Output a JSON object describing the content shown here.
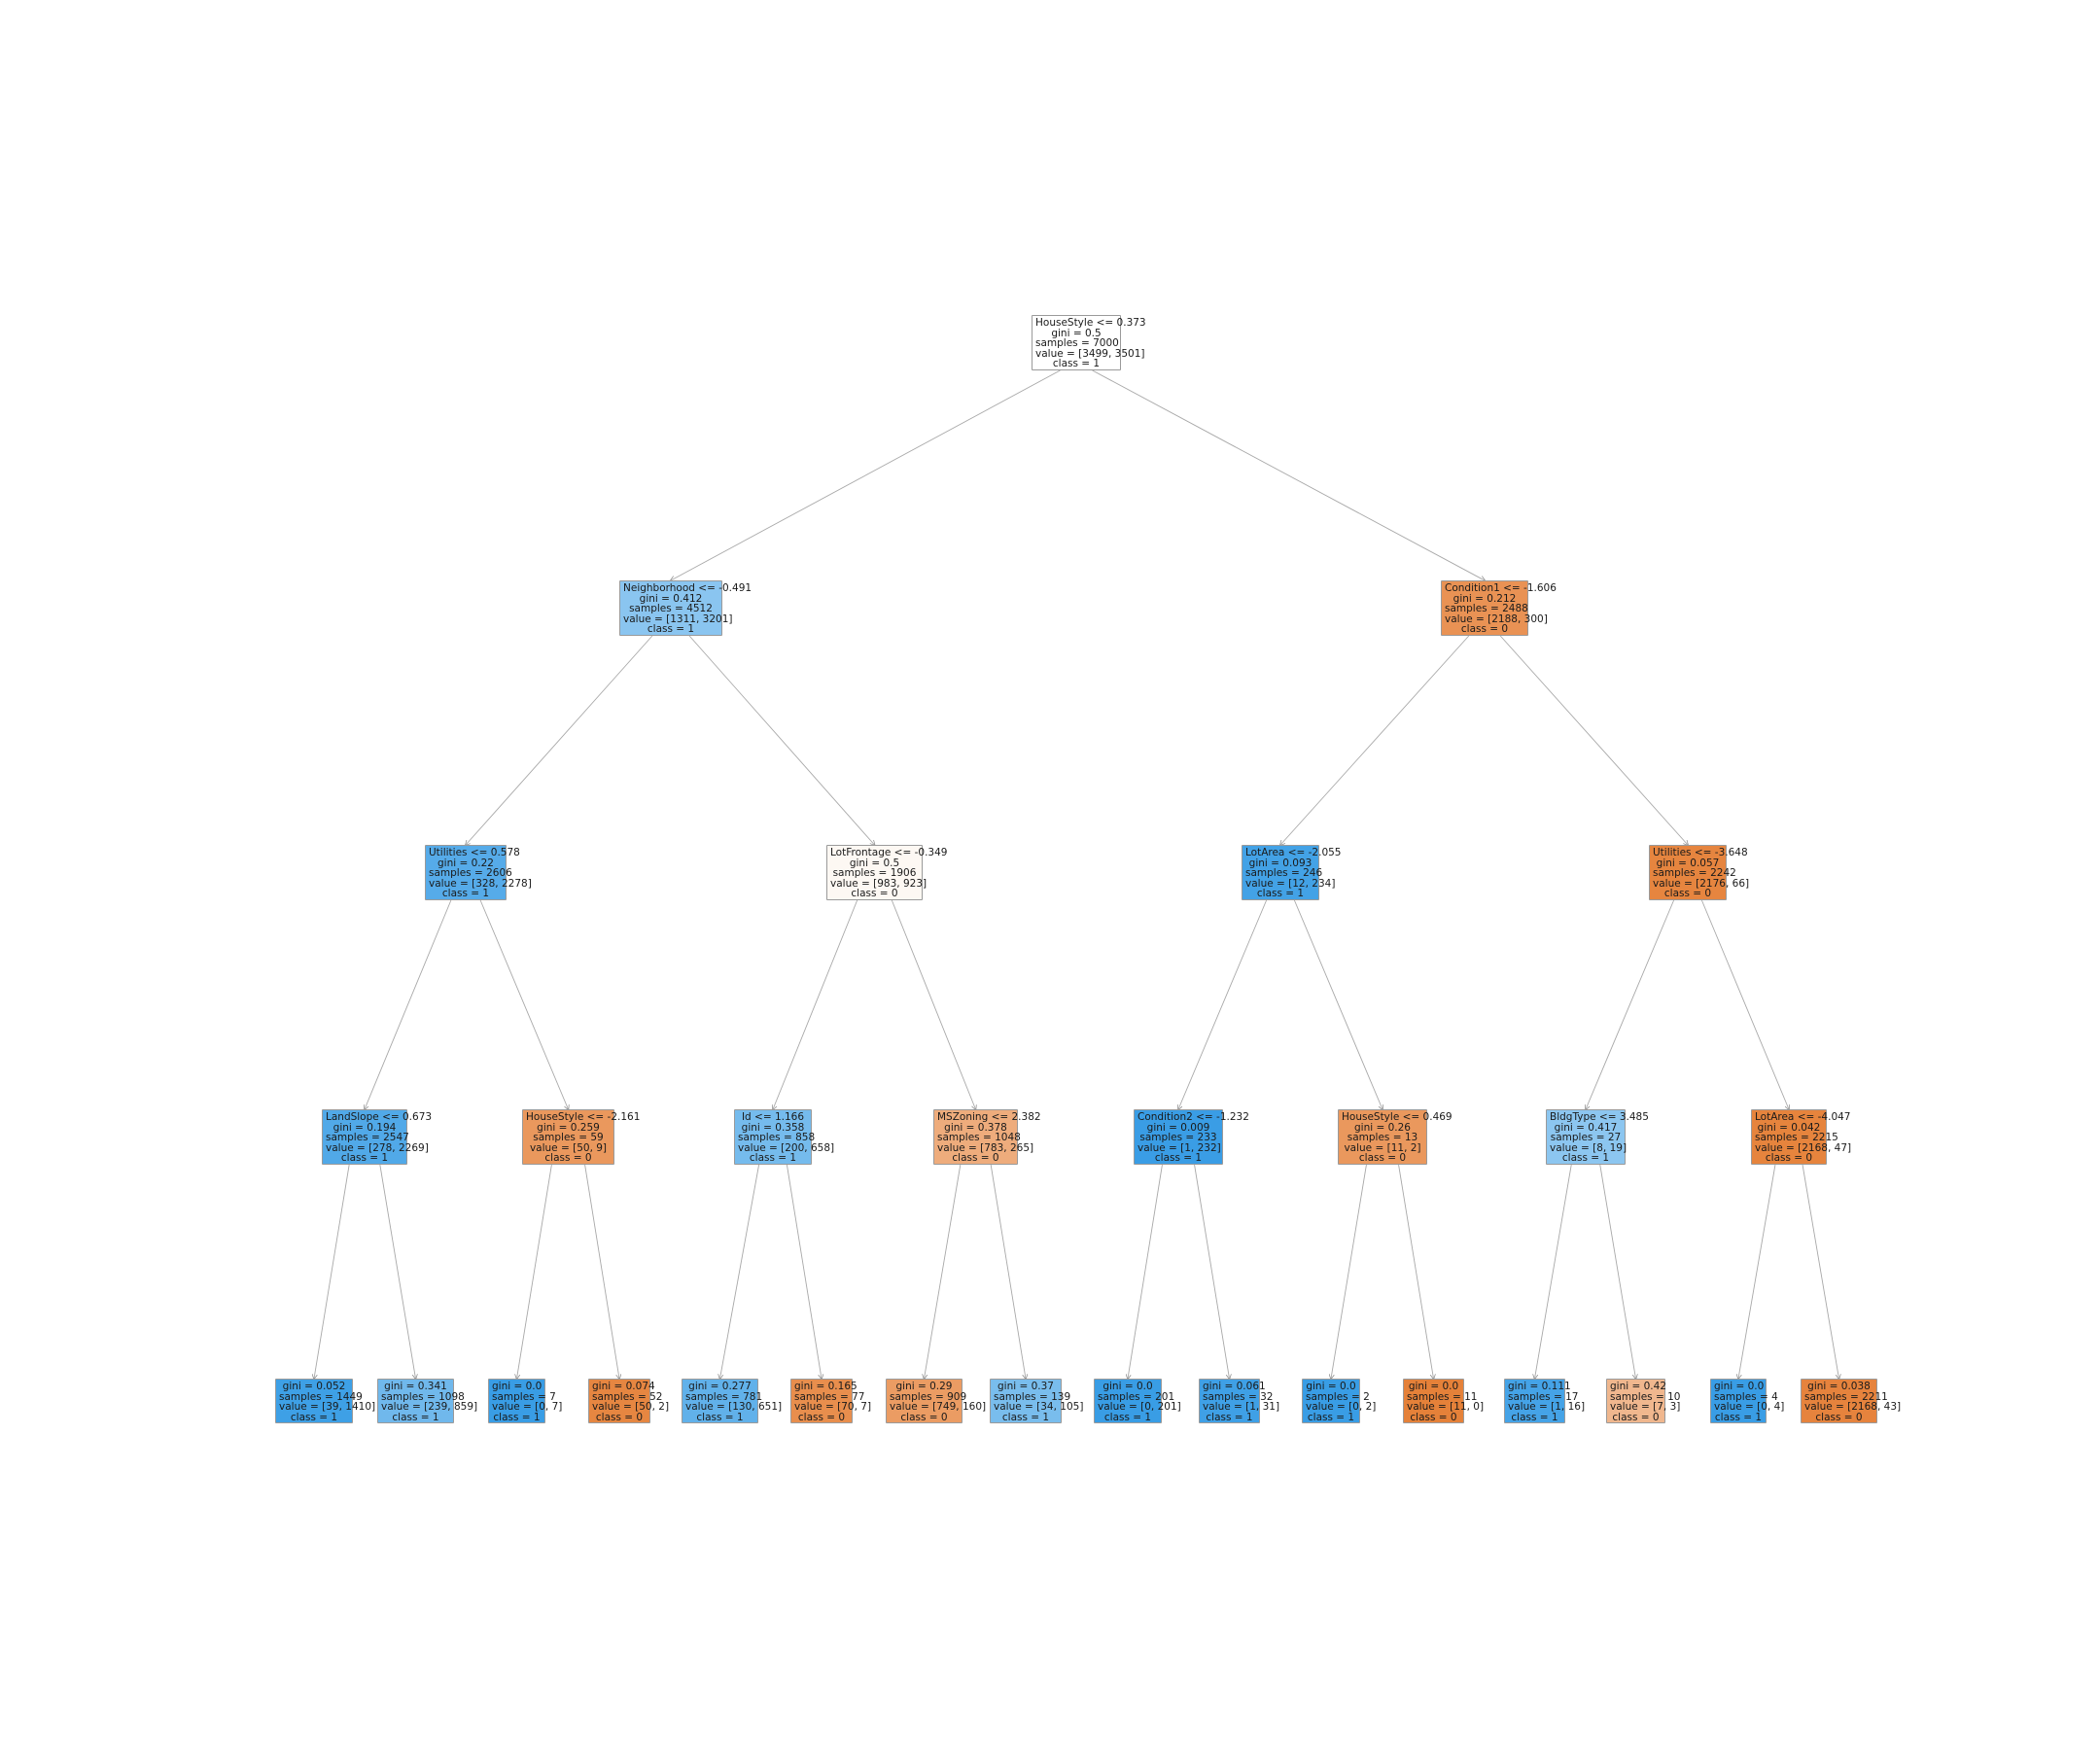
{
  "tree": {
    "nodes": {
      "root": {
        "lines": [
          "HouseStyle <= 0.373",
          "gini = 0.5",
          "samples = 7000",
          "value = [3499, 3501]",
          "class = 1"
        ],
        "fill": "#ffffff"
      },
      "L": {
        "lines": [
          "Neighborhood <= -0.491",
          "gini = 0.412",
          "samples = 4512",
          "value = [1311, 3201]",
          "class = 1"
        ],
        "fill": "#8ac5f0"
      },
      "R": {
        "lines": [
          "Condition1 <= -1.606",
          "gini = 0.212",
          "samples = 2488",
          "value = [2188, 300]",
          "class = 0"
        ],
        "fill": "#e99254"
      },
      "LL": {
        "lines": [
          "Utilities <= 0.578",
          "gini = 0.22",
          "samples = 2606",
          "value = [328, 2278]",
          "class = 1"
        ],
        "fill": "#56abe9"
      },
      "LR": {
        "lines": [
          "LotFrontage <= -0.349",
          "gini = 0.5",
          "samples = 1906",
          "value = [983, 923]",
          "class = 0"
        ],
        "fill": "#fdf8f3"
      },
      "RL": {
        "lines": [
          "LotArea <= -2.055",
          "gini = 0.093",
          "samples = 246",
          "value = [12, 234]",
          "class = 1"
        ],
        "fill": "#43a2e6"
      },
      "RR": {
        "lines": [
          "Utilities <= -3.648",
          "gini = 0.057",
          "samples = 2242",
          "value = [2176, 66]",
          "class = 0"
        ],
        "fill": "#e6853f"
      },
      "LLL": {
        "lines": [
          "LandSlope <= 0.673",
          "gini = 0.194",
          "samples = 2547",
          "value = [278, 2269]",
          "class = 1"
        ],
        "fill": "#51a9e8"
      },
      "LLR": {
        "lines": [
          "HouseStyle <= -2.161",
          "gini = 0.259",
          "samples = 59",
          "value = [50, 9]",
          "class = 0"
        ],
        "fill": "#ea985d"
      },
      "LRL": {
        "lines": [
          "Id <= 1.166",
          "gini = 0.358",
          "samples = 858",
          "value = [200, 658]",
          "class = 1"
        ],
        "fill": "#75bbed"
      },
      "LRR": {
        "lines": [
          "MSZoning <= 2.382",
          "gini = 0.378",
          "samples = 1048",
          "value = [783, 265]",
          "class = 0"
        ],
        "fill": "#eeac7c"
      },
      "RLL": {
        "lines": [
          "Condition2 <= -1.232",
          "gini = 0.009",
          "samples = 233",
          "value = [1, 232]",
          "class = 1"
        ],
        "fill": "#3a9de5"
      },
      "RLR": {
        "lines": [
          "HouseStyle <= 0.469",
          "gini = 0.26",
          "samples = 13",
          "value = [11, 2]",
          "class = 0"
        ],
        "fill": "#ea985d"
      },
      "RRL": {
        "lines": [
          "BldgType <= 3.485",
          "gini = 0.417",
          "samples = 27",
          "value = [8, 19]",
          "class = 1"
        ],
        "fill": "#8cc6f0"
      },
      "RRR": {
        "lines": [
          "LotArea <= -4.047",
          "gini = 0.042",
          "samples = 2215",
          "value = [2168, 47]",
          "class = 0"
        ],
        "fill": "#e6843d"
      },
      "L1": {
        "lines": [
          "gini = 0.052",
          "samples = 1449",
          "value = [39, 1410]",
          "class = 1"
        ],
        "fill": "#3ea0e6"
      },
      "L2": {
        "lines": [
          "gini = 0.341",
          "samples = 1098",
          "value = [239, 859]",
          "class = 1"
        ],
        "fill": "#70b8ec"
      },
      "L3": {
        "lines": [
          "gini = 0.0",
          "samples = 7",
          "value = [0, 7]",
          "class = 1"
        ],
        "fill": "#399de5"
      },
      "L4": {
        "lines": [
          "gini = 0.074",
          "samples = 52",
          "value = [50, 2]",
          "class = 0"
        ],
        "fill": "#e68641"
      },
      "L5": {
        "lines": [
          "gini = 0.277",
          "samples = 781",
          "value = [130, 651]",
          "class = 1"
        ],
        "fill": "#61b1ea"
      },
      "L6": {
        "lines": [
          "gini = 0.165",
          "samples = 77",
          "value = [70, 7]",
          "class = 0"
        ],
        "fill": "#e88e4d"
      },
      "L7": {
        "lines": [
          "gini = 0.29",
          "samples = 909",
          "value = [749, 160]",
          "class = 0"
        ],
        "fill": "#eb9c63"
      },
      "L8": {
        "lines": [
          "gini = 0.37",
          "samples = 139",
          "value = [34, 105]",
          "class = 1"
        ],
        "fill": "#79bded"
      },
      "L9": {
        "lines": [
          "gini = 0.0",
          "samples = 201",
          "value = [0, 201]",
          "class = 1"
        ],
        "fill": "#399de5"
      },
      "L10": {
        "lines": [
          "gini = 0.061",
          "samples = 32",
          "value = [1, 31]",
          "class = 1"
        ],
        "fill": "#3fa0e6"
      },
      "L11": {
        "lines": [
          "gini = 0.0",
          "samples = 2",
          "value = [0, 2]",
          "class = 1"
        ],
        "fill": "#399de5"
      },
      "L12": {
        "lines": [
          "gini = 0.0",
          "samples = 11",
          "value = [11, 0]",
          "class = 0"
        ],
        "fill": "#e58139"
      },
      "L13": {
        "lines": [
          "gini = 0.111",
          "samples = 17",
          "value = [1, 16]",
          "class = 1"
        ],
        "fill": "#45a3e7"
      },
      "L14": {
        "lines": [
          "gini = 0.42",
          "samples = 10",
          "value = [7, 3]",
          "class = 0"
        ],
        "fill": "#f0b78e"
      },
      "L15": {
        "lines": [
          "gini = 0.0",
          "samples = 4",
          "value = [0, 4]",
          "class = 1"
        ],
        "fill": "#399de5"
      },
      "L16": {
        "lines": [
          "gini = 0.038",
          "samples = 2211",
          "value = [2168, 43]",
          "class = 0"
        ],
        "fill": "#e6833d"
      }
    },
    "edges": [
      [
        "root",
        "L"
      ],
      [
        "root",
        "R"
      ],
      [
        "L",
        "LL"
      ],
      [
        "L",
        "LR"
      ],
      [
        "R",
        "RL"
      ],
      [
        "R",
        "RR"
      ],
      [
        "LL",
        "LLL"
      ],
      [
        "LL",
        "LLR"
      ],
      [
        "LR",
        "LRL"
      ],
      [
        "LR",
        "LRR"
      ],
      [
        "RL",
        "RLL"
      ],
      [
        "RL",
        "RLR"
      ],
      [
        "RR",
        "RRL"
      ],
      [
        "RR",
        "RRR"
      ],
      [
        "LLL",
        "L1"
      ],
      [
        "LLL",
        "L2"
      ],
      [
        "LLR",
        "L3"
      ],
      [
        "LLR",
        "L4"
      ],
      [
        "LRL",
        "L5"
      ],
      [
        "LRL",
        "L6"
      ],
      [
        "LRR",
        "L7"
      ],
      [
        "LRR",
        "L8"
      ],
      [
        "RLL",
        "L9"
      ],
      [
        "RLL",
        "L10"
      ],
      [
        "RLR",
        "L11"
      ],
      [
        "RLR",
        "L12"
      ],
      [
        "RRL",
        "L13"
      ],
      [
        "RRL",
        "L14"
      ],
      [
        "RRR",
        "L15"
      ],
      [
        "RRR",
        "L16"
      ]
    ]
  }
}
